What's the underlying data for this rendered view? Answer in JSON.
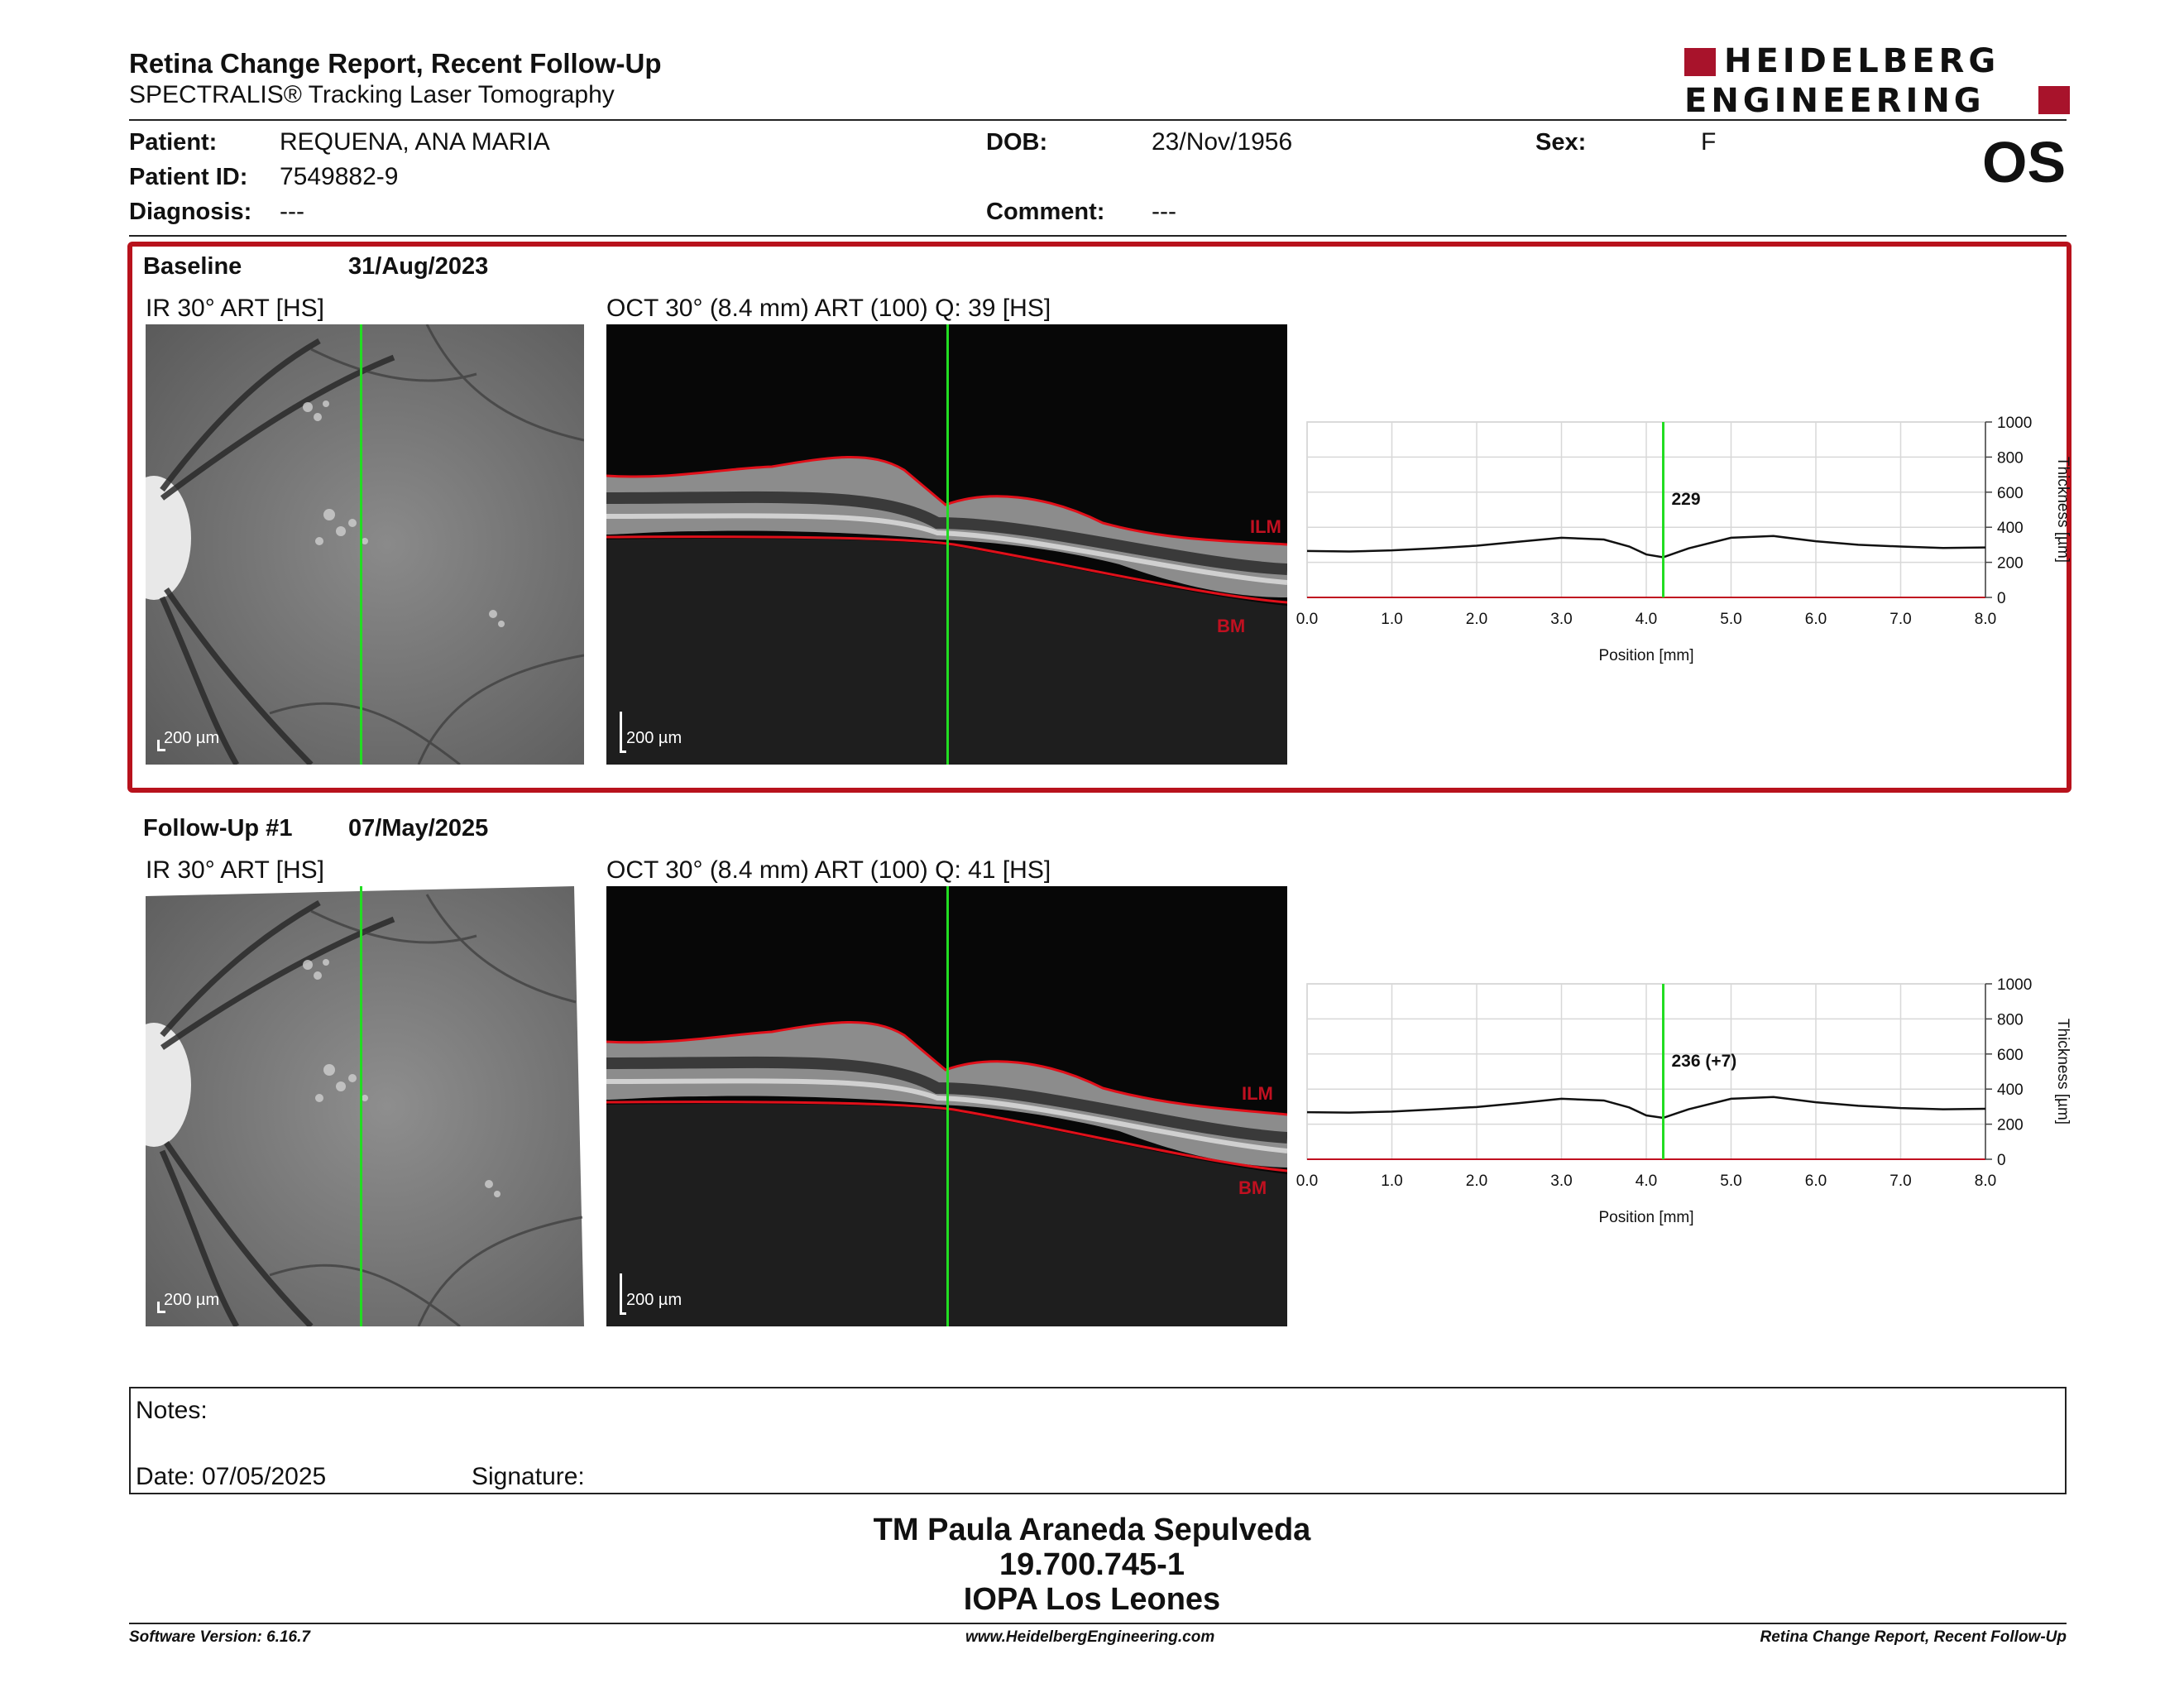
{
  "report": {
    "title": "Retina Change Report, Recent Follow-Up",
    "subtitle": "SPECTRALIS® Tracking Laser Tomography",
    "logo_line1": "HEIDELBERG",
    "logo_line2": "ENGINEERING",
    "eye": "OS",
    "brand_color": "#a8132b"
  },
  "patient": {
    "name_label": "Patient:",
    "name": "REQUENA, ANA MARIA",
    "id_label": "Patient ID:",
    "id": "7549882-9",
    "diagnosis_label": "Diagnosis:",
    "diagnosis": "---",
    "dob_label": "DOB:",
    "dob": "23/Nov/1956",
    "comment_label": "Comment:",
    "comment": "---",
    "sex_label": "Sex:",
    "sex": "F"
  },
  "exams": [
    {
      "title": "Baseline",
      "date": "31/Aug/2023",
      "ir_label": "IR 30° ART [HS]",
      "oct_label": "OCT 30° (8.4 mm) ART (100) Q: 39 [HS]",
      "scale_ir": "200 µm",
      "scale_oct": "200 µm",
      "ilm_tag": "ILM",
      "bm_tag": "BM",
      "thickness_label": "229"
    },
    {
      "title": "Follow-Up #1",
      "date": "07/May/2025",
      "ir_label": "IR 30° ART [HS]",
      "oct_label": "OCT 30° (8.4 mm) ART (100) Q: 41 [HS]",
      "scale_ir": "200 µm",
      "scale_oct": "200 µm",
      "ilm_tag": "ILM",
      "bm_tag": "BM",
      "thickness_label": "236 (+7)"
    }
  ],
  "chart_data": [
    {
      "type": "line",
      "title": "",
      "xlabel": "Position [mm]",
      "ylabel": "Thickness [µm]",
      "xlim": [
        0,
        8.0
      ],
      "ylim": [
        0,
        1000
      ],
      "x_ticks": [
        "0.0",
        "1.0",
        "2.0",
        "3.0",
        "4.0",
        "5.0",
        "6.0",
        "7.0",
        "8.0"
      ],
      "y_ticks": [
        "0",
        "200",
        "400",
        "600",
        "800",
        "1000"
      ],
      "grid": true,
      "marker_x": 4.2,
      "marker_label": "229",
      "x": [
        0.0,
        0.5,
        1.0,
        1.5,
        2.0,
        2.5,
        3.0,
        3.5,
        3.8,
        4.0,
        4.2,
        4.5,
        5.0,
        5.5,
        6.0,
        6.5,
        7.0,
        7.5,
        8.0
      ],
      "values": [
        265,
        262,
        268,
        280,
        295,
        318,
        340,
        330,
        290,
        245,
        229,
        280,
        340,
        350,
        320,
        300,
        290,
        282,
        285
      ]
    },
    {
      "type": "line",
      "title": "",
      "xlabel": "Position [mm]",
      "ylabel": "Thickness [µm]",
      "xlim": [
        0,
        8.0
      ],
      "ylim": [
        0,
        1000
      ],
      "x_ticks": [
        "0.0",
        "1.0",
        "2.0",
        "3.0",
        "4.0",
        "5.0",
        "6.0",
        "7.0",
        "8.0"
      ],
      "y_ticks": [
        "0",
        "200",
        "400",
        "600",
        "800",
        "1000"
      ],
      "grid": true,
      "marker_x": 4.2,
      "marker_label": "236 (+7)",
      "x": [
        0.0,
        0.5,
        1.0,
        1.5,
        2.0,
        2.5,
        3.0,
        3.5,
        3.8,
        4.0,
        4.2,
        4.5,
        5.0,
        5.5,
        6.0,
        6.5,
        7.0,
        7.5,
        8.0
      ],
      "values": [
        268,
        266,
        272,
        284,
        298,
        320,
        345,
        335,
        295,
        250,
        236,
        285,
        345,
        355,
        325,
        305,
        292,
        285,
        288
      ]
    }
  ],
  "notes": {
    "label": "Notes:",
    "date_label": "Date: 07/05/2025",
    "signature_label": "Signature:"
  },
  "signature": {
    "name": "TM Paula Araneda Sepulveda",
    "rut": "19.700.745-1",
    "org": "IOPA Los Leones"
  },
  "footer": {
    "version": "Software Version: 6.16.7",
    "url": "www.HeidelbergEngineering.com",
    "report": "Retina Change Report, Recent Follow-Up"
  }
}
